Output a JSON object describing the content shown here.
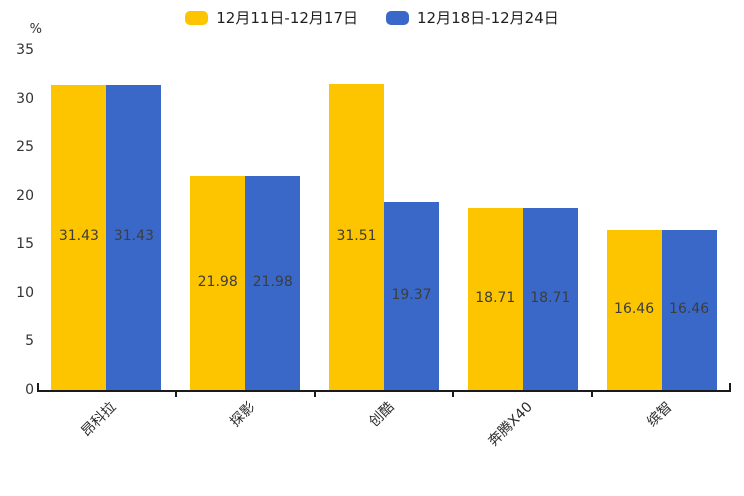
{
  "chart_data": {
    "type": "bar",
    "title": "",
    "xlabel": "",
    "ylabel": "%",
    "ylim": [
      0,
      35
    ],
    "yticks": [
      0,
      5,
      10,
      15,
      20,
      25,
      30,
      35
    ],
    "categories": [
      "昂科拉",
      "探影",
      "创酷",
      "奔腾X40",
      "缤智"
    ],
    "series": [
      {
        "name": "12月11日-12月17日",
        "color": "#FDC500",
        "values": [
          31.43,
          21.98,
          31.51,
          18.71,
          16.46
        ]
      },
      {
        "name": "12月18日-12月24日",
        "color": "#3A68C8",
        "values": [
          31.43,
          21.98,
          19.37,
          18.71,
          16.46
        ]
      }
    ],
    "bar_value_labels": [
      [
        "31.43",
        "21.98",
        "31.51",
        "18.71",
        "16.46"
      ],
      [
        "31.43",
        "21.98",
        "19.37",
        "18.71",
        "16.46"
      ]
    ],
    "legend_position": "top-center",
    "grid": false,
    "background": "#ffffff",
    "axis_color": "#1a1a1a",
    "tick_label_color": "#333333",
    "bar_label_color": "#3d3d3d",
    "xlabel_rotation_deg": -45
  }
}
